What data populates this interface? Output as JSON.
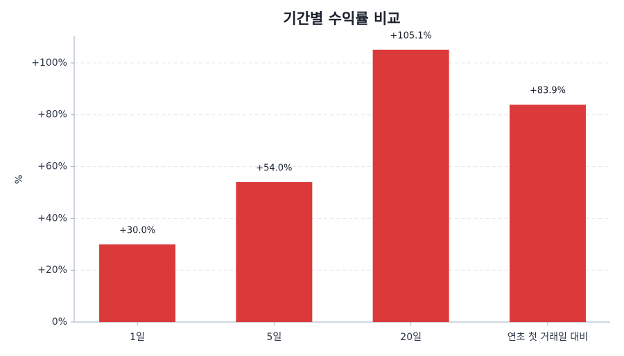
{
  "chart_data": {
    "type": "bar",
    "title": "기간별 수익률 비교",
    "y_label": "%",
    "categories": [
      "1일",
      "5일",
      "20일",
      "연초 첫 거래일 대비"
    ],
    "values": [
      30.0,
      54.0,
      105.1,
      83.9
    ],
    "value_labels": [
      "+30.0%",
      "+54.0%",
      "+105.1%",
      "+83.9%"
    ],
    "color": "#dc3a3a",
    "ylim": [
      0,
      110.4
    ],
    "yticks": [
      {
        "value": 0,
        "label": "0%"
      },
      {
        "value": 20,
        "label": "+20%"
      },
      {
        "value": 40,
        "label": "+40%"
      },
      {
        "value": 60,
        "label": "+60%"
      },
      {
        "value": 80,
        "label": "+80%"
      },
      {
        "value": 100,
        "label": "+100%"
      }
    ],
    "grid": true
  }
}
